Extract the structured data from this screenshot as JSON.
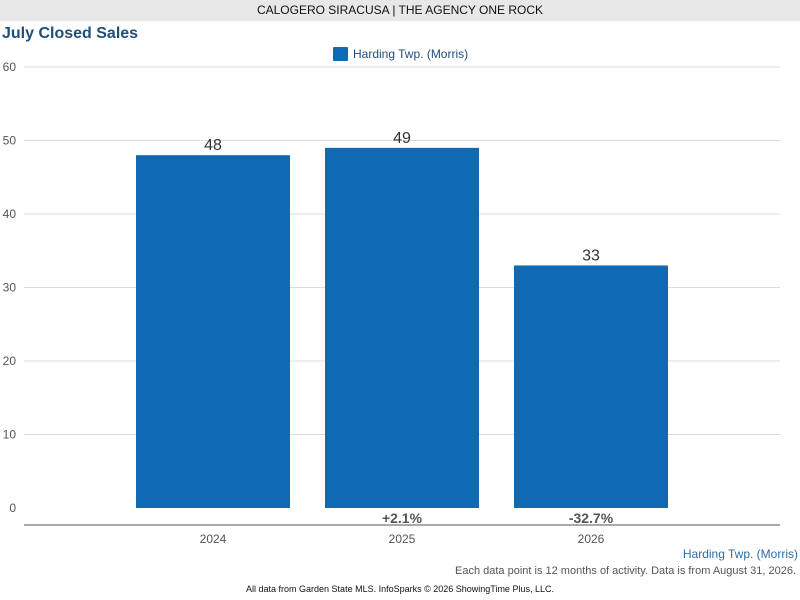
{
  "header": {
    "agent_line": "CALOGERO SIRACUSA | THE AGENCY ONE ROCK"
  },
  "chart_data": {
    "type": "bar",
    "title": "July Closed Sales",
    "categories": [
      "2024",
      "2025",
      "2026"
    ],
    "series": [
      {
        "name": "Harding Twp. (Morris)",
        "values": [
          48,
          49,
          33
        ],
        "color": "#106ab3"
      }
    ],
    "data_labels": [
      "48",
      "49",
      "33"
    ],
    "change_labels": [
      "",
      "+2.1%",
      "-32.7%"
    ],
    "ylim": [
      0,
      60
    ],
    "yticks": [
      "0",
      "10",
      "20",
      "30",
      "40",
      "50",
      "60"
    ],
    "xlabel": "",
    "ylabel": "",
    "grid": true,
    "legend_position": "top-center"
  },
  "footer": {
    "series_label": "Harding Twp. (Morris)",
    "note": "Each data point is 12 months of activity. Data is from August 31, 2026.",
    "source": "All data from Garden State MLS. InfoSparks © 2026 ShowingTime Plus, LLC."
  }
}
